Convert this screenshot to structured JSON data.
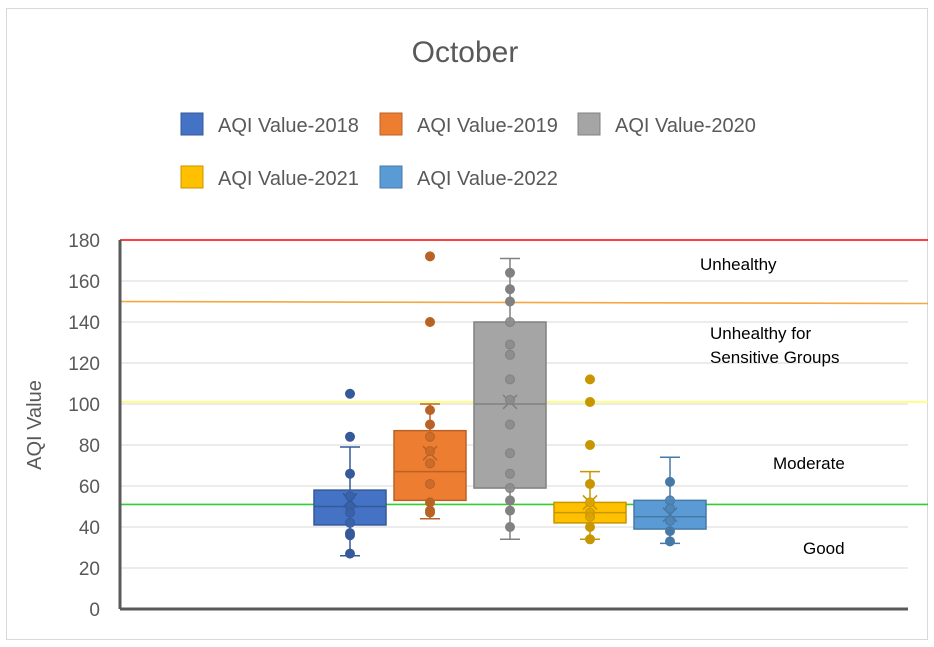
{
  "chart_data": {
    "type": "box",
    "title": "October",
    "ylabel": "AQI Value",
    "ylim": [
      0,
      180
    ],
    "yticks": [
      "0",
      "20",
      "40",
      "60",
      "80",
      "100",
      "120",
      "140",
      "160",
      "180"
    ],
    "grid": true,
    "legend_position": "top",
    "series": [
      {
        "name": "AQI Value-2018",
        "color": "#4472c4",
        "whisker_low": 26,
        "q1": 41,
        "median": 50,
        "q3": 58,
        "whisker_high": 79,
        "mean": 53,
        "points": [
          105,
          84,
          66,
          55,
          50,
          47,
          42,
          37,
          36,
          27
        ],
        "outliers": [
          105,
          84
        ]
      },
      {
        "name": "AQI Value-2019",
        "color": "#ed7d31",
        "whisker_low": 44,
        "q1": 53,
        "median": 67,
        "q3": 87,
        "whisker_high": 100,
        "mean": 76,
        "points": [
          172,
          140,
          97,
          90,
          84,
          77,
          71,
          61,
          52,
          48,
          47
        ],
        "outliers": [
          172,
          140
        ]
      },
      {
        "name": "AQI Value-2020",
        "color": "#a5a5a5",
        "whisker_low": 34,
        "q1": 59,
        "median": 100,
        "q3": 140,
        "whisker_high": 171,
        "mean": 101,
        "points": [
          164,
          156,
          150,
          140,
          129,
          124,
          112,
          102,
          90,
          76,
          66,
          59,
          53,
          48,
          40
        ],
        "outliers": []
      },
      {
        "name": "AQI Value-2021",
        "color": "#ffc000",
        "whisker_low": 34,
        "q1": 42,
        "median": 47,
        "q3": 52,
        "whisker_high": 67,
        "mean": 52,
        "points": [
          112,
          101,
          80,
          61,
          52,
          47,
          45,
          40,
          34
        ],
        "outliers": [
          112,
          101,
          80
        ]
      },
      {
        "name": "AQI Value-2022",
        "color": "#5b9bd5",
        "whisker_low": 32,
        "q1": 39,
        "median": 45,
        "q3": 53,
        "whisker_high": 74,
        "mean": 46,
        "points": [
          62,
          53,
          49,
          43,
          38,
          33
        ],
        "outliers": []
      }
    ],
    "reference_lines": [
      {
        "value": 180,
        "color": "#ff0000"
      },
      {
        "value": 150,
        "color": "#f4a742"
      },
      {
        "value": 101,
        "color": "#ffff66"
      },
      {
        "value": 51,
        "color": "#33cc33"
      }
    ],
    "zones": [
      {
        "label": "Unhealthy",
        "lines": [
          "Unhealthy"
        ],
        "at": 163
      },
      {
        "label": "Unhealthy for Sensitive Groups",
        "lines": [
          "Unhealthy for",
          "Sensitive Groups"
        ],
        "at": 135
      },
      {
        "label": "Moderate",
        "lines": [
          "Moderate"
        ],
        "at": 71
      },
      {
        "label": "Good",
        "lines": [
          "Good"
        ],
        "at": 30
      }
    ]
  }
}
